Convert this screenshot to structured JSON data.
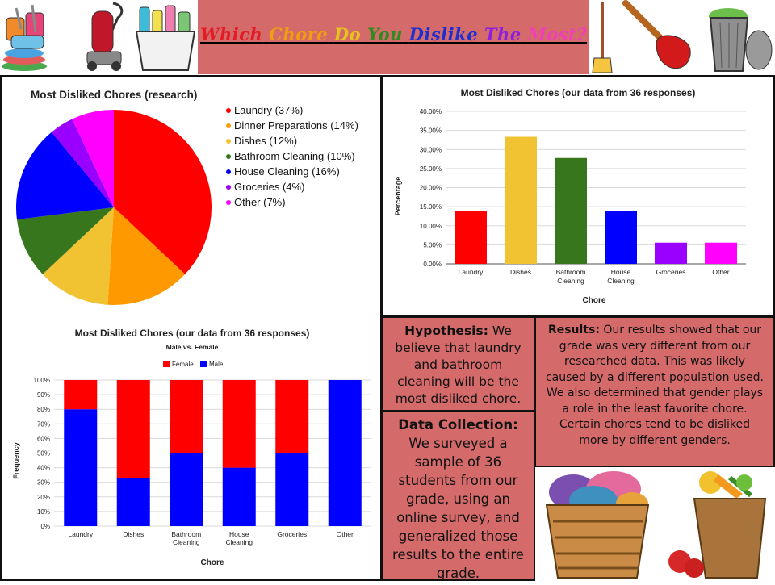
{
  "title": {
    "words": [
      {
        "text": "Which",
        "color": "#e31b23"
      },
      {
        "text": "Chore",
        "color": "#f39c12"
      },
      {
        "text": "Do",
        "color": "#e8c31d"
      },
      {
        "text": "You",
        "color": "#2e8b1f"
      },
      {
        "text": "Dislike",
        "color": "#1d2fd0"
      },
      {
        "text": "The",
        "color": "#8e1fe0"
      },
      {
        "text": "Most?",
        "color": "#f03fb8"
      }
    ]
  },
  "pie_chart": {
    "title": "Most Disliked Chores (research)"
  },
  "bar_chart": {
    "title": "Most Disliked Chores (our data from 36 responses)",
    "xlabel": "Chore",
    "ylabel": "Percentage"
  },
  "stacked_chart": {
    "title": "Most Disliked Chores (our data from 36 responses)",
    "subtitle": "Male vs. Female",
    "xlabel": "Chore",
    "ylabel": "Frequency"
  },
  "hypothesis": {
    "label": "Hypothesis:",
    "text": "We believe that laundry and bathroom cleaning will be the most disliked chore."
  },
  "data_collection": {
    "label": "Data Collection:",
    "text": "We surveyed a sample of 36 students from our grade, using an online survey, and generalized those results to the entire grade."
  },
  "results": {
    "label": "Results:",
    "text": "Our results showed that our grade was very different from our researched data. This was likely caused by a different population used. We also determined that gender plays a role in the least favorite chore. Certain chores tend to be disliked more by different genders."
  },
  "chart_data": [
    {
      "type": "pie",
      "title": "Most Disliked Chores (research)",
      "legend_position": "right",
      "slices": [
        {
          "label": "Laundry (37%)",
          "value": 37,
          "color": "#ff0000"
        },
        {
          "label": "Dinner Preparations (14%)",
          "value": 14,
          "color": "#ff9900"
        },
        {
          "label": "Dishes (12%)",
          "value": 12,
          "color": "#f1c232"
        },
        {
          "label": "Bathroom Cleaning (10%)",
          "value": 10,
          "color": "#38761d"
        },
        {
          "label": "House Cleaning (16%)",
          "value": 16,
          "color": "#0000ff"
        },
        {
          "label": "Groceries (4%)",
          "value": 4,
          "color": "#9900ff"
        },
        {
          "label": "Other (7%)",
          "value": 7,
          "color": "#ff00ff"
        }
      ]
    },
    {
      "type": "bar",
      "title": "Most Disliked Chores (our data from 36 responses)",
      "xlabel": "Chore",
      "ylabel": "Percentage",
      "categories": [
        "Laundry",
        "Dishes",
        "Bathroom Cleaning",
        "House Cleaning",
        "Groceries",
        "Other"
      ],
      "values": [
        13.89,
        33.33,
        27.78,
        13.89,
        5.56,
        5.56
      ],
      "colors": [
        "#ff0000",
        "#f1c232",
        "#38761d",
        "#0000ff",
        "#9900ff",
        "#ff00ff"
      ],
      "ylim": [
        0,
        40
      ],
      "yticks": [
        "0.00%",
        "5.00%",
        "10.00%",
        "15.00%",
        "20.00%",
        "25.00%",
        "30.00%",
        "35.00%",
        "40.00%"
      ],
      "grid": true
    },
    {
      "type": "bar",
      "stacked": true,
      "title": "Most Disliked Chores (our data from 36 responses)",
      "subtitle": "Male vs. Female",
      "xlabel": "Chore",
      "ylabel": "Frequency",
      "legend_position": "top",
      "categories": [
        "Laundry",
        "Dishes",
        "Bathroom Cleaning",
        "House Cleaning",
        "Groceries",
        "Other"
      ],
      "series": [
        {
          "name": "Male",
          "color": "#0000ff",
          "values": [
            80,
            33,
            50,
            40,
            50,
            100
          ]
        },
        {
          "name": "Female",
          "color": "#ff0000",
          "values": [
            20,
            67,
            50,
            60,
            50,
            0
          ]
        }
      ],
      "ylim": [
        0,
        100
      ],
      "yticks": [
        "0%",
        "10%",
        "20%",
        "30%",
        "40%",
        "50%",
        "60%",
        "70%",
        "80%",
        "90%",
        "100%"
      ],
      "grid": true
    }
  ]
}
